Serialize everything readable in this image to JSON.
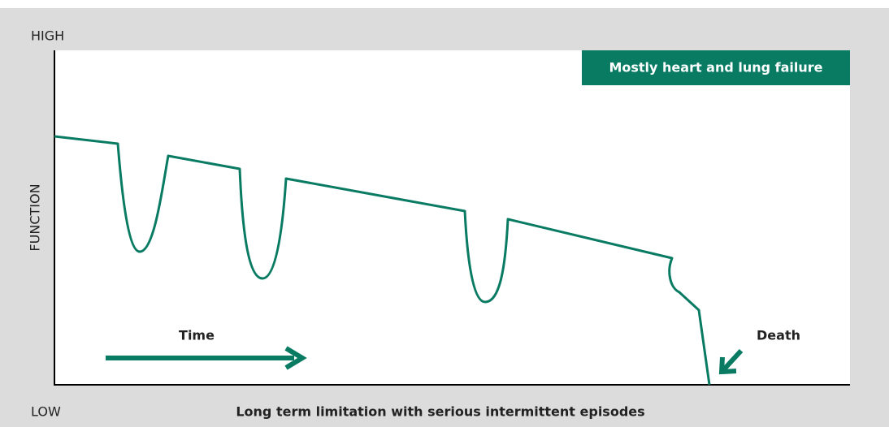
{
  "labels": {
    "high": "HIGH",
    "low": "LOW",
    "y_axis": "FUNCTION",
    "legend": "Mostly heart and lung failure",
    "time": "Time",
    "death": "Death",
    "caption": "Long term limitation with serious intermittent episodes"
  }
}
